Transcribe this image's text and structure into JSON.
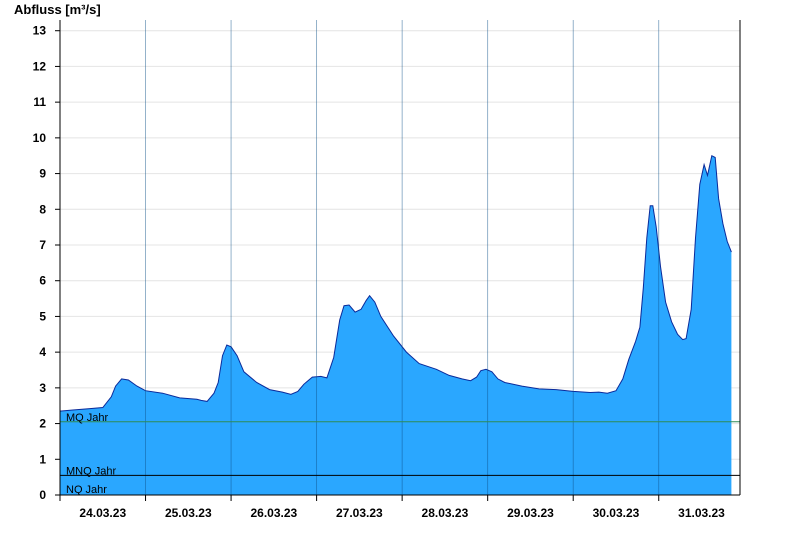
{
  "chart_data": {
    "type": "area",
    "ylabel": "Abfluss [m³/s]",
    "ylim": [
      0,
      13.3
    ],
    "yticks": [
      0,
      1,
      2,
      3,
      4,
      5,
      6,
      7,
      8,
      9,
      10,
      11,
      12,
      13
    ],
    "x_tick_labels": [
      "24.03.23",
      "25.03.23",
      "26.03.23",
      "27.03.23",
      "28.03.23",
      "29.03.23",
      "30.03.23",
      "31.03.23"
    ],
    "x_range_days": [
      0,
      7.95
    ],
    "grid": true,
    "fill_color": "#2aa7ff",
    "line_color": "#0a2a9a",
    "series": [
      {
        "values": [
          [
            0.0,
            2.35
          ],
          [
            0.15,
            2.38
          ],
          [
            0.35,
            2.42
          ],
          [
            0.5,
            2.45
          ],
          [
            0.6,
            2.75
          ],
          [
            0.65,
            3.05
          ],
          [
            0.72,
            3.25
          ],
          [
            0.8,
            3.22
          ],
          [
            0.9,
            3.05
          ],
          [
            1.0,
            2.92
          ],
          [
            1.2,
            2.85
          ],
          [
            1.4,
            2.72
          ],
          [
            1.6,
            2.68
          ],
          [
            1.65,
            2.65
          ],
          [
            1.72,
            2.62
          ],
          [
            1.8,
            2.85
          ],
          [
            1.85,
            3.15
          ],
          [
            1.9,
            3.9
          ],
          [
            1.95,
            4.2
          ],
          [
            2.0,
            4.15
          ],
          [
            2.07,
            3.9
          ],
          [
            2.15,
            3.45
          ],
          [
            2.3,
            3.15
          ],
          [
            2.45,
            2.95
          ],
          [
            2.6,
            2.88
          ],
          [
            2.7,
            2.82
          ],
          [
            2.78,
            2.9
          ],
          [
            2.85,
            3.1
          ],
          [
            2.95,
            3.3
          ],
          [
            3.05,
            3.32
          ],
          [
            3.12,
            3.28
          ],
          [
            3.2,
            3.85
          ],
          [
            3.27,
            4.9
          ],
          [
            3.32,
            5.3
          ],
          [
            3.38,
            5.32
          ],
          [
            3.45,
            5.12
          ],
          [
            3.52,
            5.2
          ],
          [
            3.58,
            5.45
          ],
          [
            3.62,
            5.58
          ],
          [
            3.68,
            5.4
          ],
          [
            3.75,
            5.0
          ],
          [
            3.9,
            4.45
          ],
          [
            4.05,
            4.0
          ],
          [
            4.2,
            3.68
          ],
          [
            4.4,
            3.52
          ],
          [
            4.55,
            3.35
          ],
          [
            4.7,
            3.25
          ],
          [
            4.8,
            3.2
          ],
          [
            4.87,
            3.3
          ],
          [
            4.92,
            3.48
          ],
          [
            4.98,
            3.52
          ],
          [
            5.05,
            3.45
          ],
          [
            5.12,
            3.25
          ],
          [
            5.2,
            3.15
          ],
          [
            5.4,
            3.05
          ],
          [
            5.6,
            2.97
          ],
          [
            5.8,
            2.95
          ],
          [
            6.0,
            2.9
          ],
          [
            6.2,
            2.87
          ],
          [
            6.3,
            2.88
          ],
          [
            6.4,
            2.85
          ],
          [
            6.5,
            2.92
          ],
          [
            6.58,
            3.25
          ],
          [
            6.65,
            3.8
          ],
          [
            6.73,
            4.3
          ],
          [
            6.78,
            4.7
          ],
          [
            6.82,
            5.8
          ],
          [
            6.86,
            7.2
          ],
          [
            6.9,
            8.1
          ],
          [
            6.93,
            8.1
          ],
          [
            6.97,
            7.5
          ],
          [
            7.02,
            6.4
          ],
          [
            7.08,
            5.4
          ],
          [
            7.15,
            4.85
          ],
          [
            7.22,
            4.5
          ],
          [
            7.28,
            4.35
          ],
          [
            7.32,
            4.38
          ],
          [
            7.38,
            5.2
          ],
          [
            7.43,
            7.2
          ],
          [
            7.48,
            8.7
          ],
          [
            7.53,
            9.25
          ],
          [
            7.57,
            8.95
          ],
          [
            7.62,
            9.5
          ],
          [
            7.66,
            9.45
          ],
          [
            7.7,
            8.3
          ],
          [
            7.75,
            7.6
          ],
          [
            7.8,
            7.1
          ],
          [
            7.85,
            6.8
          ]
        ]
      }
    ],
    "reference_lines": [
      {
        "label": "MQ Jahr",
        "value": 2.05,
        "color": "#2e8b57"
      },
      {
        "label": "MNQ Jahr",
        "value": 0.55,
        "color": "#000000"
      },
      {
        "label": "NQ Jahr",
        "value": 0.0,
        "color": "#000000"
      }
    ]
  }
}
